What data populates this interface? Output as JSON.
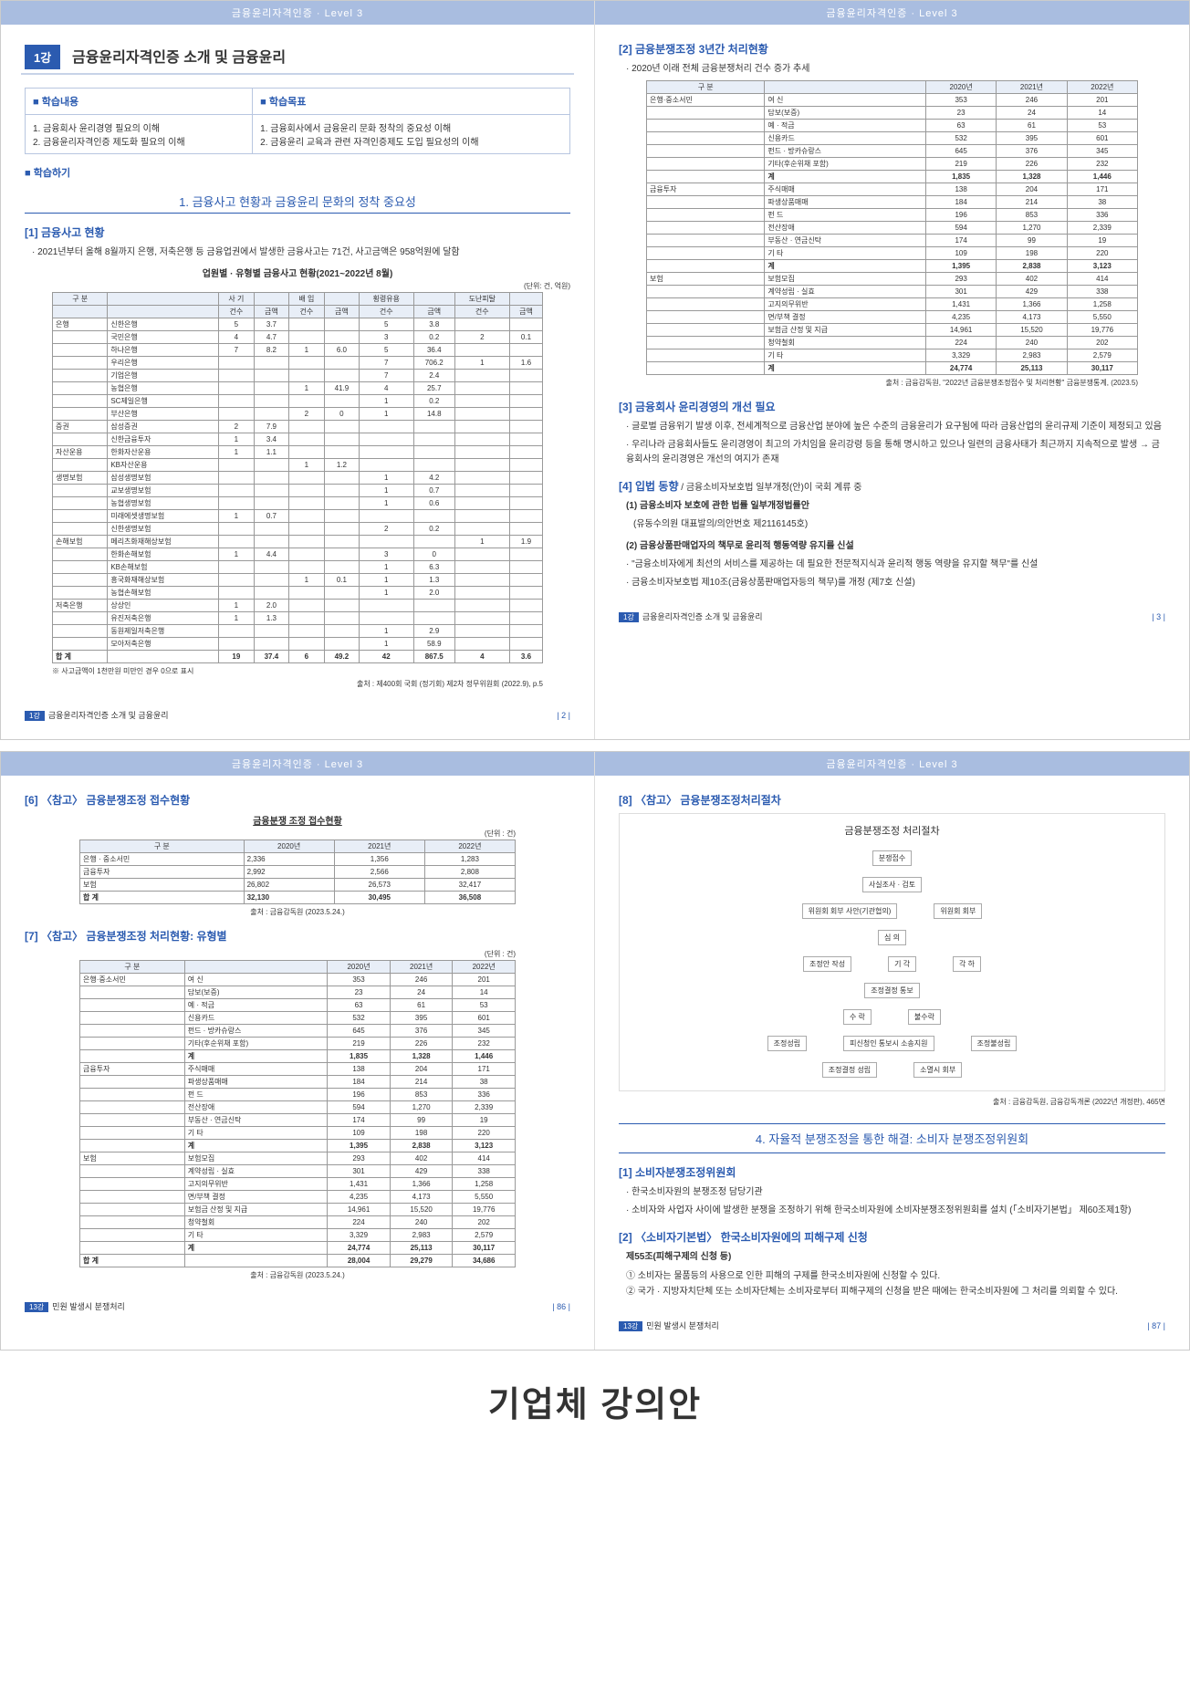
{
  "header": "금융윤리자격인증 · Level 3",
  "big_title": "기업체 강의안",
  "p1": {
    "tag": "1강",
    "title": "금융윤리자격인증 소개 및 금융윤리",
    "box_h1": "■ 학습내용",
    "box_h2": "■ 학습목표",
    "box_c1a": "1. 금융회사 윤리경영 필요의 이해",
    "box_c1b": "2. 금융윤리자격인증 제도화 필요의 이해",
    "box_c2a": "1. 금융회사에서 금융윤리 문화 정착의 중요성 이해",
    "box_c2b": "2. 금융윤리 교육과 관련 자격인증제도 도입 필요성의 이해",
    "study": "■ 학습하기",
    "sec1": "1. 금융사고 현황과 금융윤리 문화의 정착 중요성",
    "sub1": "[1] 금융사고 현황",
    "bul1": "· 2021년부터 올해 8월까지 은행, 저축은행 등 금융업권에서 발생한 금융사고는 71건, 사고금액은 958억원에 달함",
    "tbl_cap": "업원별 · 유형별 금융사고 현황(2021~2022년 8월)",
    "unit": "(단위: 건, 억원)",
    "tbl": {
      "head_top": [
        "구 분",
        "",
        "사 기",
        "",
        "배 임",
        "",
        "횡령유용",
        "",
        "도난피탈",
        ""
      ],
      "head_sub": [
        "",
        "",
        "건수",
        "금액",
        "건수",
        "금액",
        "건수",
        "금액",
        "건수",
        "금액"
      ],
      "rows": [
        [
          "은행",
          "신한은행",
          "5",
          "3.7",
          "",
          "",
          "5",
          "3.8",
          "",
          ""
        ],
        [
          "",
          "국민은행",
          "4",
          "4.7",
          "",
          "",
          "3",
          "0.2",
          "2",
          "0.1"
        ],
        [
          "",
          "하나은행",
          "7",
          "8.2",
          "1",
          "6.0",
          "5",
          "36.4",
          "",
          ""
        ],
        [
          "",
          "우리은행",
          "",
          "",
          "",
          "",
          "7",
          "706.2",
          "1",
          "1.6"
        ],
        [
          "",
          "기업은행",
          "",
          "",
          "",
          "",
          "7",
          "2.4",
          "",
          ""
        ],
        [
          "",
          "농협은행",
          "",
          "",
          "1",
          "41.9",
          "4",
          "25.7",
          "",
          ""
        ],
        [
          "",
          "SC제일은행",
          "",
          "",
          "",
          "",
          "1",
          "0.2",
          "",
          ""
        ],
        [
          "",
          "부산은행",
          "",
          "",
          "2",
          "0",
          "1",
          "14.8",
          "",
          ""
        ],
        [
          "증권",
          "삼성증권",
          "2",
          "7.9",
          "",
          "",
          "",
          "",
          "",
          ""
        ],
        [
          "",
          "신한금융투자",
          "1",
          "3.4",
          "",
          "",
          "",
          "",
          "",
          ""
        ],
        [
          "자산운용",
          "한화자산운용",
          "1",
          "1.1",
          "",
          "",
          "",
          "",
          "",
          ""
        ],
        [
          "",
          "KB자산운용",
          "",
          "",
          "1",
          "1.2",
          "",
          "",
          "",
          ""
        ],
        [
          "생명보험",
          "삼성생명보험",
          "",
          "",
          "",
          "",
          "1",
          "4.2",
          "",
          ""
        ],
        [
          "",
          "교보생명보험",
          "",
          "",
          "",
          "",
          "1",
          "0.7",
          "",
          ""
        ],
        [
          "",
          "농협생명보험",
          "",
          "",
          "",
          "",
          "1",
          "0.6",
          "",
          ""
        ],
        [
          "",
          "미래에셋생명보험",
          "1",
          "0.7",
          "",
          "",
          "",
          "",
          "",
          ""
        ],
        [
          "",
          "신한생명보험",
          "",
          "",
          "",
          "",
          "2",
          "0.2",
          "",
          ""
        ],
        [
          "손해보험",
          "메리츠화재해상보험",
          "",
          "",
          "",
          "",
          "",
          "",
          "1",
          "1.9"
        ],
        [
          "",
          "한화손해보험",
          "1",
          "4.4",
          "",
          "",
          "3",
          "0",
          "",
          ""
        ],
        [
          "",
          "KB손해보험",
          "",
          "",
          "",
          "",
          "1",
          "6.3",
          "",
          ""
        ],
        [
          "",
          "흥국화재해상보험",
          "",
          "",
          "1",
          "0.1",
          "1",
          "1.3",
          "",
          ""
        ],
        [
          "",
          "농협손해보험",
          "",
          "",
          "",
          "",
          "1",
          "2.0",
          "",
          ""
        ],
        [
          "저축은행",
          "상상인",
          "1",
          "2.0",
          "",
          "",
          "",
          "",
          "",
          ""
        ],
        [
          "",
          "유진저축은행",
          "1",
          "1.3",
          "",
          "",
          "",
          "",
          "",
          ""
        ],
        [
          "",
          "동원제일저축은행",
          "",
          "",
          "",
          "",
          "1",
          "2.9",
          "",
          ""
        ],
        [
          "",
          "모아저축은행",
          "",
          "",
          "",
          "",
          "1",
          "58.9",
          "",
          ""
        ],
        [
          "합 계",
          "",
          "19",
          "37.4",
          "6",
          "49.2",
          "42",
          "867.5",
          "4",
          "3.6"
        ]
      ]
    },
    "note": "※ 사고금액이 1천만원 미만인 경우 0으로 표시",
    "src": "출처 : 제400회 국회 (정기회) 제2차 정무위원회 (2022.9), p.5",
    "ft": "금융윤리자격인증 소개 및 금융윤리",
    "ft_tag": "1강",
    "pg": "| 2 |"
  },
  "p2": {
    "sub2": "[2] 금융분쟁조정 3년간 처리현황",
    "bul2": "· 2020년 이래 전체 금융분쟁처리 건수 증가 추세",
    "tbl": {
      "head": [
        "구 분",
        "",
        "2020년",
        "2021년",
        "2022년"
      ],
      "rows": [
        [
          "은행·중소서민",
          "여 신",
          "353",
          "246",
          "201"
        ],
        [
          "",
          "담보(보증)",
          "23",
          "24",
          "14"
        ],
        [
          "",
          "예 · 적금",
          "63",
          "61",
          "53"
        ],
        [
          "",
          "신용카드",
          "532",
          "395",
          "601"
        ],
        [
          "",
          "펀드 · 방카슈랑스",
          "645",
          "376",
          "345"
        ],
        [
          "",
          "기타(후순위채 포함)",
          "219",
          "226",
          "232"
        ],
        [
          "",
          "계",
          "1,835",
          "1,328",
          "1,446"
        ],
        [
          "금융투자",
          "주식매매",
          "138",
          "204",
          "171"
        ],
        [
          "",
          "파생상품매매",
          "184",
          "214",
          "38"
        ],
        [
          "",
          "펀 드",
          "196",
          "853",
          "336"
        ],
        [
          "",
          "전산장애",
          "594",
          "1,270",
          "2,339"
        ],
        [
          "",
          "부동산 · 연금신탁",
          "174",
          "99",
          "19"
        ],
        [
          "",
          "기 타",
          "109",
          "198",
          "220"
        ],
        [
          "",
          "계",
          "1,395",
          "2,838",
          "3,123"
        ],
        [
          "보험",
          "보험모집",
          "293",
          "402",
          "414"
        ],
        [
          "",
          "계약성립 · 실효",
          "301",
          "429",
          "338"
        ],
        [
          "",
          "고지의무위반",
          "1,431",
          "1,366",
          "1,258"
        ],
        [
          "",
          "면/부책 결정",
          "4,235",
          "4,173",
          "5,550"
        ],
        [
          "",
          "보험금 산정 및 지급",
          "14,961",
          "15,520",
          "19,776"
        ],
        [
          "",
          "청약철회",
          "224",
          "240",
          "202"
        ],
        [
          "",
          "기 타",
          "3,329",
          "2,983",
          "2,579"
        ],
        [
          "",
          "계",
          "24,774",
          "25,113",
          "30,117"
        ]
      ]
    },
    "src2": "출처 : 금융감독원, \"2022년 금융분쟁조정접수 및 처리현황\" 금융분쟁통계, (2023.5)",
    "sub3": "[3] 금융회사 윤리경영의 개선 필요",
    "b3a": "· 글로벌 금융위기 발생 이후, 전세계적으로 금융산업 분야에 높은 수준의 금융윤리가 요구됨에 따라 금융산업의 윤리규제 기준이 제정되고 있음",
    "b3b": "· 우리나라 금융회사들도 윤리경영이 최고의 가치임을 윤리강령 등을 통해 명시하고 있으나 일련의 금융사태가 최근까지 지속적으로 발생 → 금융회사의 윤리경영은 개선의 여지가 존재",
    "sub4": "[4] 입법 동향",
    "sub4_tail": " / 금융소비자보호법 일부개정(안)이 국회 계류 중",
    "s4_1": "(1) 금융소비자 보호에 관한 법률 일부개정법률안",
    "s4_1_d": "(유동수의원 대표발의/의안번호 제2116145호)",
    "s4_2": "(2) 금융상품판매업자의 책무로 윤리적 행동역량 유지를 신설",
    "s4_2a": "· \"금융소비자에게 최선의 서비스를 제공하는 데 필요한 전문적지식과 윤리적 행동 역량을 유지할 책무\"를 신설",
    "s4_2b": "· 금융소비자보호법 제10조(금융상품판매업자등의 책무)를 개정 (제7호 신설)",
    "ft": "금융윤리자격인증 소개 및 금융윤리",
    "ft_tag": "1강",
    "pg": "| 3 |"
  },
  "p3": {
    "sub6": "[6] 〈참고〉 금융분쟁조정 접수현황",
    "cap6": "금융분쟁 조정 접수현황",
    "unit6": "(단위 : 건)",
    "t6": {
      "head": [
        "구 분",
        "2020년",
        "2021년",
        "2022년"
      ],
      "rows": [
        [
          "은행 · 중소서민",
          "2,336",
          "1,356",
          "1,283"
        ],
        [
          "금융투자",
          "2,992",
          "2,566",
          "2,808"
        ],
        [
          "보험",
          "26,802",
          "26,573",
          "32,417"
        ],
        [
          "합 계",
          "32,130",
          "30,495",
          "36,508"
        ]
      ]
    },
    "src6": "출처 : 금융감독원 (2023.5.24.)",
    "sub7": "[7] 〈참고〉 금융분쟁조정 처리현황: 유형별",
    "unit7": "(단위 : 건)",
    "t7": {
      "head": [
        "구 분",
        "",
        "2020년",
        "2021년",
        "2022년"
      ],
      "rows": [
        [
          "은행·중소서민",
          "여 신",
          "353",
          "246",
          "201"
        ],
        [
          "",
          "담보(보증)",
          "23",
          "24",
          "14"
        ],
        [
          "",
          "예 · 적금",
          "63",
          "61",
          "53"
        ],
        [
          "",
          "신용카드",
          "532",
          "395",
          "601"
        ],
        [
          "",
          "펀드 · 방카슈랑스",
          "645",
          "376",
          "345"
        ],
        [
          "",
          "기타(후순위채 포함)",
          "219",
          "226",
          "232"
        ],
        [
          "",
          "계",
          "1,835",
          "1,328",
          "1,446"
        ],
        [
          "금융투자",
          "주식매매",
          "138",
          "204",
          "171"
        ],
        [
          "",
          "파생상품매매",
          "184",
          "214",
          "38"
        ],
        [
          "",
          "펀 드",
          "196",
          "853",
          "336"
        ],
        [
          "",
          "전산장애",
          "594",
          "1,270",
          "2,339"
        ],
        [
          "",
          "부동산 · 연금신탁",
          "174",
          "99",
          "19"
        ],
        [
          "",
          "기 타",
          "109",
          "198",
          "220"
        ],
        [
          "",
          "계",
          "1,395",
          "2,838",
          "3,123"
        ],
        [
          "보험",
          "보험모집",
          "293",
          "402",
          "414"
        ],
        [
          "",
          "계약성립 · 실효",
          "301",
          "429",
          "338"
        ],
        [
          "",
          "고지의무위반",
          "1,431",
          "1,366",
          "1,258"
        ],
        [
          "",
          "면/부책 결정",
          "4,235",
          "4,173",
          "5,550"
        ],
        [
          "",
          "보험금 산정 및 지급",
          "14,961",
          "15,520",
          "19,776"
        ],
        [
          "",
          "청약철회",
          "224",
          "240",
          "202"
        ],
        [
          "",
          "기 타",
          "3,329",
          "2,983",
          "2,579"
        ],
        [
          "",
          "계",
          "24,774",
          "25,113",
          "30,117"
        ],
        [
          "합 계",
          "",
          "28,004",
          "29,279",
          "34,686"
        ]
      ]
    },
    "src7": "출처 : 금융감독원 (2023.5.24.)",
    "ft": "민원 발생시 분쟁처리",
    "ft_tag": "13강",
    "pg": "| 86 |"
  },
  "p4": {
    "sub8": "[8] 〈참고〉 금융분쟁조정처리절차",
    "flow_title": "금융분쟁조정 처리절차",
    "nodes": [
      "분쟁접수",
      "사실조사 · 검토",
      "위원회 회부 사안(기관협의)",
      "위원회 회부",
      "심 의",
      "조정결정 성립",
      "수 락",
      "조정성립",
      "조정결정 통보",
      "기 각",
      "각 하",
      "불수락",
      "조정불성립",
      "피신청인 통보시 소송지원",
      "소멸시 회부",
      "조정안 작성"
    ],
    "src8": "출처 : 금융감독원, 금융감독개론 (2022년 개정판), 465면",
    "mid": "4. 자율적 분쟁조정을 통한 해결: 소비자 분쟁조정위원회",
    "sub_a": "[1] 소비자분쟁조정위원회",
    "a1": "· 한국소비자원의 분쟁조정 담당기관",
    "a2": "· 소비자와 사업자 사이에 발생한 분쟁을 조정하기 위해 한국소비자원에 소비자분쟁조정위원회를 설치 (「소비자기본법」 제60조제1항)",
    "sub_b": "[2] 〈소비자기본법〉 한국소비자원에의 피해구제 신청",
    "b_h": "제55조(피해구제의 신청 등)",
    "b1": "① 소비자는 물품등의 사용으로 인한 피해의 구제를 한국소비자원에 신청할 수 있다.",
    "b2": "② 국가 · 지방자치단체 또는 소비자단체는 소비자로부터 피해구제의 신청을 받은 때에는 한국소비자원에 그 처리를 의뢰할 수 있다.",
    "ft": "민원 발생시 분쟁처리",
    "ft_tag": "13강",
    "pg": "| 87 |"
  }
}
